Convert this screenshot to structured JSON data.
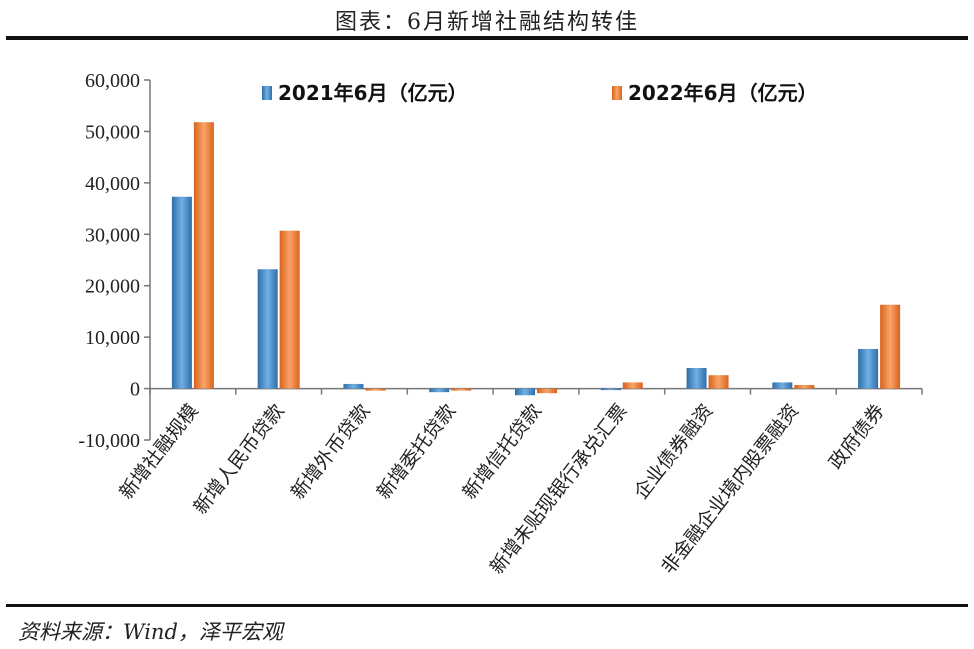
{
  "title": "图表：6月新增社融结构转佳",
  "source": "资料来源：Wind，泽平宏观",
  "colors": {
    "series_2021": "#4a90c9",
    "series_2022": "#f07f36"
  },
  "chart_data": {
    "type": "bar",
    "categories": [
      "新增社融规模",
      "新增人民币贷款",
      "新增外币贷款",
      "新增委托贷款",
      "新增信托贷款",
      "新增未贴现银行承兑汇票",
      "企业债券融资",
      "非金融企业境内股票融资",
      "政府债券"
    ],
    "series": [
      {
        "name": "2021年6月（亿元）",
        "values": [
          37300,
          23200,
          900,
          -700,
          -1300,
          -300,
          4000,
          1200,
          7700
        ]
      },
      {
        "name": "2022年6月（亿元）",
        "values": [
          51800,
          30700,
          -400,
          -400,
          -900,
          1200,
          2600,
          700,
          16300
        ]
      }
    ],
    "ylim": [
      -10000,
      60000
    ],
    "yticks": [
      "-10,000",
      "0",
      "10,000",
      "20,000",
      "30,000",
      "40,000",
      "50,000",
      "60,000"
    ],
    "ytick_values": [
      -10000,
      0,
      10000,
      20000,
      30000,
      40000,
      50000,
      60000
    ],
    "legend_position": "top",
    "grid": false
  }
}
